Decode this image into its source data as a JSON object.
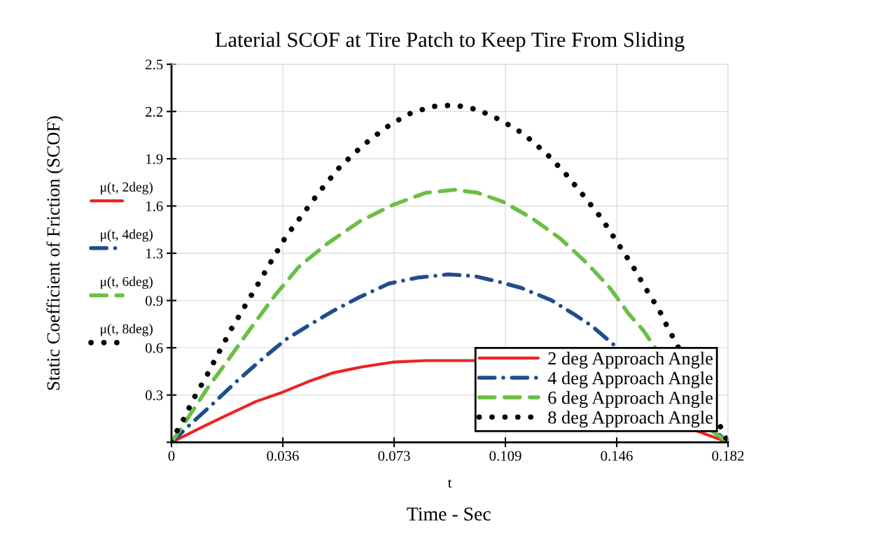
{
  "chart_data": {
    "type": "line",
    "title": "Laterial SCOF at Tire Patch to Keep Tire From Sliding",
    "xlabel": "t",
    "ylabel": "Static Coefficient of Friction (SCOF)",
    "annotations": [
      "μ(t, 2deg)",
      "μ(t, 4deg)",
      "μ(t, 6deg)",
      "μ(t, 8deg)",
      "Time - Sec"
    ],
    "xlim": [
      0,
      0.182
    ],
    "ylim": [
      0,
      2.5
    ],
    "xticks": [
      0,
      {
        "value": 0.0364,
        "label": "0.036"
      },
      {
        "value": 0.0728,
        "label": "0.073"
      },
      {
        "value": 0.1092,
        "label": "0.109"
      },
      {
        "value": 0.1456,
        "label": "0.146"
      },
      0.182
    ],
    "yticks": [
      {
        "value": 0,
        "label": null
      },
      {
        "value": 0.3125,
        "label": "0.3"
      },
      {
        "value": 0.625,
        "label": "0.6"
      },
      {
        "value": 0.9375,
        "label": "0.9"
      },
      {
        "value": 1.25,
        "label": "1.3"
      },
      {
        "value": 1.5625,
        "label": "1.6"
      },
      {
        "value": 1.875,
        "label": "1.9"
      },
      {
        "value": 2.1875,
        "label": "2.2"
      },
      2.5
    ],
    "grid": true,
    "legend": "bottom right",
    "series": [
      {
        "name": "2 deg Approach Angle",
        "color": "#ee2222",
        "line_style": "solid",
        "x": [
          0,
          0.006,
          0.012,
          0.0193,
          0.0277,
          0.0362,
          0.0446,
          0.053,
          0.0627,
          0.0724,
          0.0832,
          0.0953,
          0.1001,
          0.1724,
          0.182
        ],
        "values": [
          0,
          0.06,
          0.12,
          0.19,
          0.27,
          0.33,
          0.4,
          0.46,
          0.5,
          0.53,
          0.54,
          0.54,
          0.54,
          0.07,
          0
        ]
      },
      {
        "name": "4 deg Approach Angle",
        "color": "#1f4e8c",
        "line_style": "dashdot",
        "x": [
          0,
          0.0049,
          0.0133,
          0.0217,
          0.0302,
          0.0374,
          0.0446,
          0.053,
          0.0615,
          0.0712,
          0.0808,
          0.0904,
          0.0989,
          0.1073,
          0.1145,
          0.1242,
          0.1314,
          0.1374,
          0.182
        ],
        "values": [
          0,
          0.095,
          0.25,
          0.41,
          0.56,
          0.68,
          0.77,
          0.87,
          0.96,
          1.05,
          1.09,
          1.11,
          1.1,
          1.06,
          1.02,
          0.94,
          0.85,
          0.77,
          0
        ]
      },
      {
        "name": "6 deg Approach Angle",
        "color": "#6abf45",
        "line_style": "dashed",
        "x": [
          0,
          0.006,
          0.0115,
          0.018,
          0.0254,
          0.0338,
          0.0416,
          0.0507,
          0.0615,
          0.0724,
          0.0832,
          0.0928,
          0.1001,
          0.1085,
          0.118,
          0.127,
          0.1356,
          0.1434,
          0.1495,
          0.1543,
          0.177,
          0.182
        ],
        "values": [
          0,
          0.18,
          0.35,
          0.53,
          0.74,
          0.97,
          1.16,
          1.31,
          1.46,
          1.57,
          1.65,
          1.67,
          1.65,
          1.59,
          1.48,
          1.35,
          1.19,
          1.02,
          0.85,
          0.74,
          0.07,
          0
        ]
      },
      {
        "name": "8 deg Approach Angle",
        "color": "#000000",
        "line_style": "dotted",
        "x": [
          0,
          0.0013,
          0.0034,
          0.0073,
          0.0115,
          0.0154,
          0.0196,
          0.024,
          0.0284,
          0.033,
          0.0374,
          0.043,
          0.0485,
          0.055,
          0.0624,
          0.07,
          0.0774,
          0.085,
          0.0926,
          0.1001,
          0.1077,
          0.1151,
          0.1226,
          0.1287,
          0.1348,
          0.1407,
          0.1455,
          0.1507,
          0.155,
          0.1596,
          0.1615,
          0.1796,
          0.182
        ],
        "values": [
          0,
          0.058,
          0.13,
          0.29,
          0.44,
          0.59,
          0.75,
          0.9,
          1.05,
          1.21,
          1.36,
          1.51,
          1.66,
          1.82,
          1.96,
          2.08,
          2.17,
          2.22,
          2.23,
          2.2,
          2.13,
          2.04,
          1.91,
          1.78,
          1.63,
          1.48,
          1.33,
          1.17,
          1.02,
          0.87,
          0.79,
          0.1,
          0
        ]
      }
    ]
  }
}
